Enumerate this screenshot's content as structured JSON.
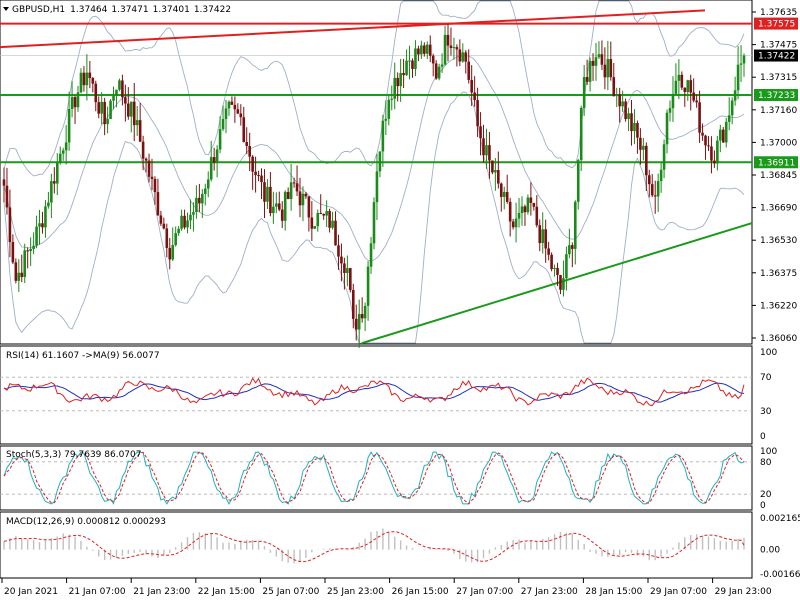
{
  "header": {
    "symbol": "GBPUSD,H1",
    "open": "1.37464",
    "high": "1.37471",
    "low": "1.37401",
    "close": "1.37422"
  },
  "price_axis": {
    "ticks": [
      "1.37635",
      "1.37475",
      "1.37315",
      "1.37160",
      "1.37000",
      "1.36845",
      "1.36690",
      "1.36530",
      "1.36375",
      "1.36220",
      "1.36060"
    ],
    "line_tags": [
      {
        "text": "1.37575",
        "color": "#e02020"
      },
      {
        "text": "1.37422",
        "color": "#000000"
      },
      {
        "text": "1.37233",
        "color": "#1a9a1a"
      },
      {
        "text": "1.36911",
        "color": "#1a9a1a"
      }
    ]
  },
  "rsi": {
    "label": "RSI(14) 61.1607  ->MA(9) 56.0077",
    "ticks": [
      "100",
      "70",
      "30",
      "0"
    ]
  },
  "stoch": {
    "label": "Stoch(5,3,3) 79.7639 86.0707",
    "ticks": [
      "100",
      "80",
      "20",
      "0"
    ]
  },
  "macd": {
    "label": "MACD(12,26,9) 0.000812 0.000293",
    "ticks": [
      "0.002165",
      "0.00",
      "-0.001666"
    ]
  },
  "time_axis": [
    "20 Jan 2021",
    "21 Jan 07:00",
    "21 Jan 23:00",
    "22 Jan 15:00",
    "25 Jan 07:00",
    "25 Jan 23:00",
    "26 Jan 15:00",
    "27 Jan 07:00",
    "27 Jan 23:00",
    "28 Jan 15:00",
    "29 Jan 07:00",
    "29 Jan 23:00"
  ],
  "colors": {
    "bull_candle": "#1a8a1a",
    "bear_candle": "#7a1010",
    "resistance_line": "#e02020",
    "support_line": "#1a9a1a",
    "bollinger": "#9fb0c8",
    "rsi_line": "#e02020",
    "rsi_ma": "#2030c0",
    "stoch_main": "#20b0c0",
    "stoch_signal": "#e02020",
    "macd_hist": "#c0c0c0",
    "macd_signal": "#e02020"
  },
  "chart_data": {
    "type": "candlestick",
    "symbol": "GBPUSD",
    "timeframe": "H1",
    "ylim": [
      1.3606,
      1.3764
    ],
    "horizontal_levels": [
      1.37575,
      1.37233,
      1.36911
    ],
    "trendlines": [
      {
        "kind": "resistance",
        "from": 1.37462,
        "to": 1.37638
      },
      {
        "kind": "support",
        "from": 1.36045,
        "to": 1.3662
      }
    ],
    "last_close": 1.37422,
    "indicators": {
      "rsi": {
        "period": 14,
        "value": 61.1607,
        "ma_period": 9,
        "ma_value": 56.0077,
        "levels": [
          70,
          30
        ]
      },
      "stochastic": {
        "params": [
          5,
          3,
          3
        ],
        "main": 79.7639,
        "signal": 86.0707,
        "levels": [
          80,
          20
        ]
      },
      "macd": {
        "params": [
          12,
          26,
          9
        ],
        "macd": 0.000812,
        "signal": 0.000293
      }
    }
  }
}
